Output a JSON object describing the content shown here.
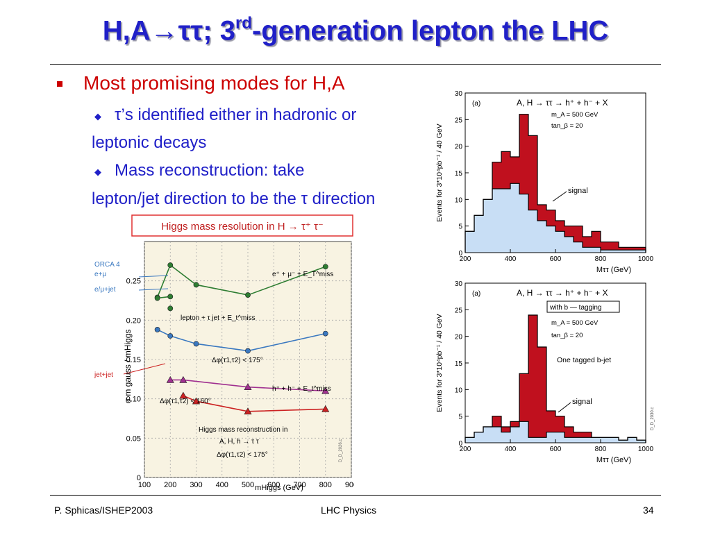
{
  "slide": {
    "title_main": "H,A→ττ; 3",
    "title_sup": "rd",
    "title_rest": "-generation lepton the LHC",
    "bullet": "Most promising modes for H,A",
    "sub1_line1": "τ’s identified either in hadronic or",
    "sub1_line2": "leptonic decays",
    "sub2_line1": "Mass reconstruction: take",
    "sub2_line2": "lepton/jet direction to be the τ direction",
    "footer_left": "P. Sphicas/ISHEP2003",
    "footer_center": "LHC Physics",
    "footer_right": "34"
  },
  "chart_data": [
    {
      "type": "line",
      "title": "Higgs mass resolution in H → τ⁺ τ⁻",
      "xlabel": "mHiggs (GeV)",
      "ylabel": "σ m gauss / mHiggs",
      "xlim": [
        100,
        900
      ],
      "ylim": [
        0,
        0.3
      ],
      "x_ticks": [
        "100",
        "200",
        "300",
        "400",
        "500",
        "600",
        "700",
        "800",
        "900"
      ],
      "y_ticks": [
        "0",
        "0.05",
        "0.10",
        "0.15",
        "0.20",
        "0.25"
      ],
      "legend_labels": [
        "ORCA 4",
        "e+μ",
        "e/μ+jet",
        "jet+jet"
      ],
      "annotations": [
        "e⁺ + μ⁻ + E_T^miss",
        "lepton + τ jet + E_t^miss",
        "Δφ(τ1,τ2) < 175°",
        "h⁺ + h⁻ + E_t^miss",
        "Δφ(τ1,τ2) < 160°",
        "Higgs mass reconstruction in",
        "A, H, h → τ τ",
        "Δφ(τ1,τ2) < 175°",
        "D_D_2026.c"
      ],
      "series": [
        {
          "name": "e⁺ + μ⁻ + E_T^miss",
          "color": "#2e7d32",
          "x": [
            150,
            200,
            300,
            500,
            800
          ],
          "y": [
            0.229,
            0.27,
            0.245,
            0.232,
            0.268
          ]
        },
        {
          "name": "e+μ ORCA",
          "color": "#2e7d32",
          "x": [
            150,
            200
          ],
          "y": [
            0.228,
            0.23
          ]
        },
        {
          "name": "e/μ+jet ORCA",
          "color": "#2e7d32",
          "x": [
            200
          ],
          "y": [
            0.215
          ]
        },
        {
          "name": "lepton + τ jet + E_t^miss",
          "color": "#3a78c0",
          "x": [
            150,
            200,
            300,
            500,
            800
          ],
          "y": [
            0.188,
            0.18,
            0.17,
            0.161,
            0.183
          ]
        },
        {
          "name": "Δφ(τ1,τ2) < 175°",
          "color": "#a03090",
          "x": [
            200,
            250,
            500,
            800
          ],
          "y": [
            0.124,
            0.124,
            0.115,
            0.11
          ]
        },
        {
          "name": "h⁺ + h⁻ + E_t^miss, Δφ(τ1,τ2) < 160°",
          "color": "#cc2222",
          "x": [
            250,
            300,
            500,
            800
          ],
          "y": [
            0.104,
            0.097,
            0.084,
            0.087
          ]
        }
      ]
    },
    {
      "type": "bar",
      "panel": "(a)",
      "title": "A, H → ττ → h⁺ + h⁻ + X",
      "notes": [
        "m_A = 500 GeV",
        "tan_β = 20"
      ],
      "annotation": "signal",
      "xlabel": "Mττ (GeV)",
      "ylabel": "Events for 3*10⁴pb⁻¹ / 40 GeV",
      "xlim": [
        200,
        1000
      ],
      "ylim": [
        0,
        30
      ],
      "x_ticks": [
        "200",
        "400",
        "600",
        "800",
        "1000"
      ],
      "y_ticks": [
        "0",
        "5",
        "10",
        "15",
        "20",
        "25",
        "30"
      ],
      "bin_edges": [
        200,
        240,
        280,
        320,
        360,
        400,
        440,
        480,
        520,
        560,
        600,
        640,
        680,
        720,
        760,
        800,
        840,
        880,
        920,
        960,
        1000
      ],
      "series": [
        {
          "name": "total",
          "color": "#c0101e",
          "values": [
            4,
            7,
            10,
            17,
            19,
            18,
            26,
            22,
            9,
            8,
            6,
            5,
            5,
            3,
            4,
            2,
            2,
            1,
            1,
            1
          ]
        },
        {
          "name": "background",
          "color": "#c8def5",
          "values": [
            4,
            7,
            10,
            12,
            12,
            13,
            11,
            8,
            6,
            5,
            4,
            3,
            2,
            1,
            1,
            0.5,
            0.5,
            0.5,
            0.5,
            0.5
          ]
        }
      ]
    },
    {
      "type": "bar",
      "panel": "(a)",
      "title": "A, H → ττ → h⁺ + h⁻ + X",
      "notes": [
        "with b — tagging",
        "m_A = 500 GeV",
        "tan_β = 20",
        "One tagged b-jet",
        "D_D_2030.c"
      ],
      "annotation": "signal",
      "xlabel": "Mττ (GeV)",
      "ylabel": "Events for 3*10⁴pb⁻¹ / 40 GeV",
      "xlim": [
        200,
        1000
      ],
      "ylim": [
        0,
        30
      ],
      "x_ticks": [
        "200",
        "400",
        "600",
        "800",
        "1000"
      ],
      "y_ticks": [
        "0",
        "5",
        "10",
        "15",
        "20",
        "25",
        "30"
      ],
      "bin_edges": [
        200,
        240,
        280,
        320,
        360,
        400,
        440,
        480,
        520,
        560,
        600,
        640,
        680,
        720,
        760,
        800,
        840,
        880,
        920,
        960,
        1000
      ],
      "series": [
        {
          "name": "total",
          "color": "#c0101e",
          "values": [
            1,
            2,
            3,
            5,
            3,
            4,
            13,
            24,
            18,
            6,
            5,
            3,
            2,
            2,
            1,
            1,
            1,
            0.5,
            1,
            0.5
          ]
        },
        {
          "name": "background",
          "color": "#c8def5",
          "values": [
            1,
            2,
            3,
            3,
            2,
            3,
            4,
            1,
            1,
            2,
            2,
            1,
            1,
            1,
            1,
            1,
            1,
            0.5,
            1,
            0.5
          ]
        }
      ]
    }
  ]
}
